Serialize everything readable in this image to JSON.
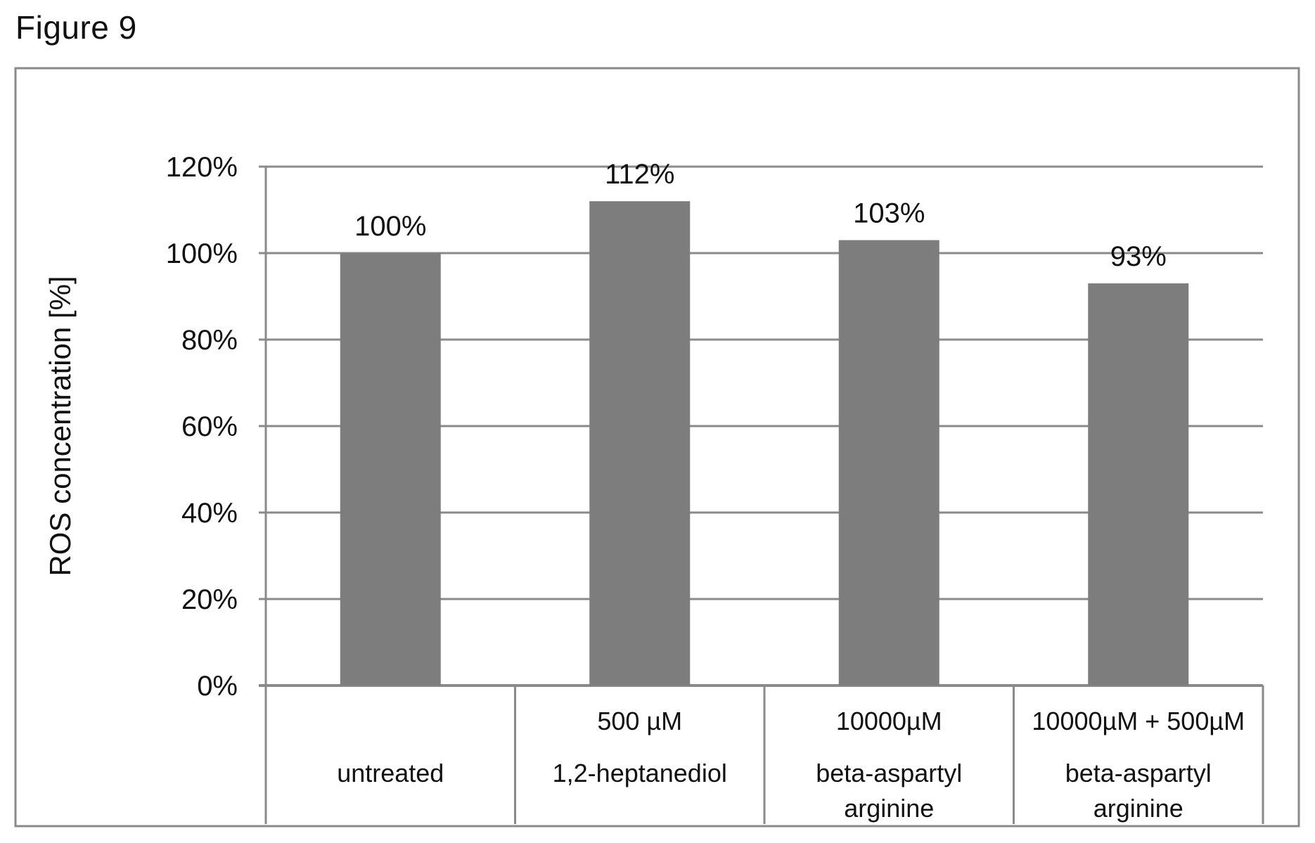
{
  "figure_title": "Figure 9",
  "colors": {
    "bar": "#7d7d7d",
    "grid": "#8a8a8a",
    "frame": "#8a8a8a"
  },
  "chart_data": {
    "type": "bar",
    "title": "",
    "ylabel": "ROS concentration [%]",
    "xlabel": "",
    "ylim": [
      0,
      120
    ],
    "y_ticks": [
      "0%",
      "20%",
      "40%",
      "60%",
      "80%",
      "100%",
      "120%"
    ],
    "grid": true,
    "categories": [
      {
        "line1": "",
        "line2": "untreated",
        "line3": ""
      },
      {
        "line1": "500 µM",
        "line2": "1,2-heptanediol",
        "line3": ""
      },
      {
        "line1": "10000µM",
        "line2": "beta-aspartyl",
        "line3": "arginine"
      },
      {
        "line1": "10000µM + 500µM",
        "line2": "beta-aspartyl",
        "line3": "arginine"
      }
    ],
    "values": [
      100,
      112,
      103,
      93
    ],
    "data_labels": [
      "100%",
      "112%",
      "103%",
      "93%"
    ]
  }
}
